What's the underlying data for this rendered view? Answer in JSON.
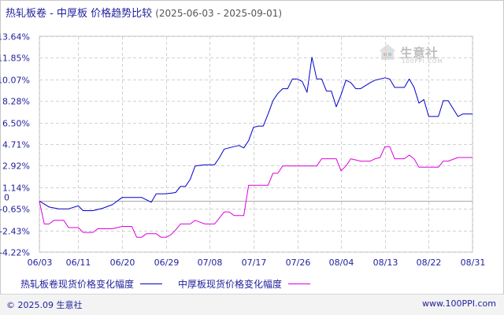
{
  "title": {
    "main": "热轧板卷 - 中厚板 价格趋势比较",
    "range": "(2025-06-03 - 2025-09-01)"
  },
  "legend": [
    {
      "label": "热轧板卷现货价格变化幅度",
      "color": "#0000cc"
    },
    {
      "label": "中厚板现货价格变化幅度",
      "color": "#dd00dd"
    }
  ],
  "footer": {
    "copyright": "© 2025.09 生意社",
    "site": "www.100PPI.com"
  },
  "watermark": {
    "logo_text": "生意社",
    "sub_text": "100PPI.COM",
    "icon": "house-logo-icon"
  },
  "colors": {
    "series1": "#0000cc",
    "series2": "#dd00dd",
    "grid": "#c8c8c8",
    "axis": "#1f1f9c"
  },
  "chart_data": {
    "type": "line",
    "title": "热轧板卷 - 中厚板 价格趋势比较",
    "subtitle": "(2025-06-03 - 2025-09-01)",
    "xlabel": "",
    "ylabel": "",
    "x_tick_labels": [
      "06/03",
      "06/11",
      "06/20",
      "06/29",
      "07/08",
      "07/17",
      "07/26",
      "08/04",
      "08/13",
      "08/22",
      "08/31"
    ],
    "x_tick_dates": [
      "2025-06-03",
      "2025-06-11",
      "2025-06-20",
      "2025-06-29",
      "2025-07-08",
      "2025-07-17",
      "2025-07-26",
      "2025-08-04",
      "2025-08-13",
      "2025-08-22",
      "2025-08-31"
    ],
    "y_tick_labels": [
      "13.64%",
      "11.85%",
      "10.07%",
      "8.28%",
      "6.50%",
      "4.71%",
      "2.92%",
      "1.14%",
      "-0.65%",
      "-2.43%",
      "-4.22%"
    ],
    "y_ticks": [
      13.64,
      11.85,
      10.07,
      8.28,
      6.5,
      4.71,
      2.92,
      1.14,
      -0.65,
      -2.43,
      -4.22
    ],
    "zero_label": "0",
    "ylim": [
      -4.22,
      13.64
    ],
    "xlim": [
      "2025-06-03",
      "2025-08-31"
    ],
    "grid": true,
    "legend_position": "bottom",
    "series": [
      {
        "name": "热轧板卷现货价格变化幅度",
        "color": "#0000cc",
        "points": [
          [
            "2025-06-03",
            0.0
          ],
          [
            "2025-06-05",
            -0.5
          ],
          [
            "2025-06-07",
            -0.65
          ],
          [
            "2025-06-09",
            -0.65
          ],
          [
            "2025-06-11",
            -0.4
          ],
          [
            "2025-06-12",
            -0.8
          ],
          [
            "2025-06-14",
            -0.8
          ],
          [
            "2025-06-16",
            -0.6
          ],
          [
            "2025-06-18",
            -0.3
          ],
          [
            "2025-06-20",
            0.3
          ],
          [
            "2025-06-22",
            0.3
          ],
          [
            "2025-06-24",
            0.3
          ],
          [
            "2025-06-26",
            -0.1
          ],
          [
            "2025-06-27",
            0.6
          ],
          [
            "2025-06-29",
            0.6
          ],
          [
            "2025-07-01",
            0.7
          ],
          [
            "2025-07-02",
            1.2
          ],
          [
            "2025-07-03",
            1.2
          ],
          [
            "2025-07-04",
            1.8
          ],
          [
            "2025-07-05",
            2.9
          ],
          [
            "2025-07-07",
            3.0
          ],
          [
            "2025-07-08",
            3.0
          ],
          [
            "2025-07-09",
            3.0
          ],
          [
            "2025-07-10",
            3.6
          ],
          [
            "2025-07-11",
            4.3
          ],
          [
            "2025-07-13",
            4.5
          ],
          [
            "2025-07-14",
            4.6
          ],
          [
            "2025-07-15",
            4.4
          ],
          [
            "2025-07-16",
            5.0
          ],
          [
            "2025-07-17",
            6.1
          ],
          [
            "2025-07-18",
            6.2
          ],
          [
            "2025-07-19",
            6.2
          ],
          [
            "2025-07-20",
            7.2
          ],
          [
            "2025-07-21",
            8.3
          ],
          [
            "2025-07-22",
            8.9
          ],
          [
            "2025-07-23",
            9.3
          ],
          [
            "2025-07-24",
            9.3
          ],
          [
            "2025-07-25",
            10.1
          ],
          [
            "2025-07-26",
            10.1
          ],
          [
            "2025-07-27",
            9.9
          ],
          [
            "2025-07-28",
            9.0
          ],
          [
            "2025-07-29",
            11.9
          ],
          [
            "2025-07-30",
            10.1
          ],
          [
            "2025-07-31",
            10.1
          ],
          [
            "2025-08-01",
            9.1
          ],
          [
            "2025-08-02",
            9.1
          ],
          [
            "2025-08-03",
            7.8
          ],
          [
            "2025-08-04",
            8.8
          ],
          [
            "2025-08-05",
            10.0
          ],
          [
            "2025-08-06",
            9.8
          ],
          [
            "2025-08-07",
            9.3
          ],
          [
            "2025-08-08",
            9.3
          ],
          [
            "2025-08-10",
            9.8
          ],
          [
            "2025-08-11",
            10.0
          ],
          [
            "2025-08-12",
            10.1
          ],
          [
            "2025-08-13",
            10.2
          ],
          [
            "2025-08-14",
            10.1
          ],
          [
            "2025-08-15",
            9.4
          ],
          [
            "2025-08-16",
            9.4
          ],
          [
            "2025-08-17",
            9.4
          ],
          [
            "2025-08-18",
            10.1
          ],
          [
            "2025-08-19",
            9.4
          ],
          [
            "2025-08-20",
            8.1
          ],
          [
            "2025-08-21",
            8.4
          ],
          [
            "2025-08-22",
            7.0
          ],
          [
            "2025-08-24",
            7.0
          ],
          [
            "2025-08-25",
            8.3
          ],
          [
            "2025-08-26",
            8.3
          ],
          [
            "2025-08-28",
            7.0
          ],
          [
            "2025-08-29",
            7.2
          ],
          [
            "2025-08-31",
            7.2
          ]
        ]
      },
      {
        "name": "中厚板现货价格变化幅度",
        "color": "#dd00dd",
        "points": [
          [
            "2025-06-03",
            0.0
          ],
          [
            "2025-06-04",
            -1.9
          ],
          [
            "2025-06-05",
            -1.9
          ],
          [
            "2025-06-06",
            -1.6
          ],
          [
            "2025-06-07",
            -1.6
          ],
          [
            "2025-06-08",
            -1.6
          ],
          [
            "2025-06-09",
            -2.2
          ],
          [
            "2025-06-11",
            -2.2
          ],
          [
            "2025-06-12",
            -2.6
          ],
          [
            "2025-06-14",
            -2.6
          ],
          [
            "2025-06-15",
            -2.3
          ],
          [
            "2025-06-18",
            -2.3
          ],
          [
            "2025-06-20",
            -2.1
          ],
          [
            "2025-06-22",
            -2.1
          ],
          [
            "2025-06-23",
            -3.0
          ],
          [
            "2025-06-24",
            -3.0
          ],
          [
            "2025-06-25",
            -2.7
          ],
          [
            "2025-06-27",
            -2.7
          ],
          [
            "2025-06-28",
            -3.0
          ],
          [
            "2025-06-29",
            -3.0
          ],
          [
            "2025-06-30",
            -2.8
          ],
          [
            "2025-07-01",
            -2.4
          ],
          [
            "2025-07-02",
            -1.9
          ],
          [
            "2025-07-04",
            -1.9
          ],
          [
            "2025-07-05",
            -1.6
          ],
          [
            "2025-07-07",
            -1.9
          ],
          [
            "2025-07-09",
            -1.9
          ],
          [
            "2025-07-11",
            -0.9
          ],
          [
            "2025-07-12",
            -0.9
          ],
          [
            "2025-07-13",
            -1.2
          ],
          [
            "2025-07-14",
            -1.2
          ],
          [
            "2025-07-15",
            -1.2
          ],
          [
            "2025-07-16",
            1.3
          ],
          [
            "2025-07-17",
            1.3
          ],
          [
            "2025-07-20",
            1.3
          ],
          [
            "2025-07-21",
            2.3
          ],
          [
            "2025-07-22",
            2.3
          ],
          [
            "2025-07-23",
            2.9
          ],
          [
            "2025-07-24",
            2.9
          ],
          [
            "2025-07-30",
            2.9
          ],
          [
            "2025-07-31",
            3.5
          ],
          [
            "2025-08-01",
            3.5
          ],
          [
            "2025-08-03",
            3.5
          ],
          [
            "2025-08-04",
            2.5
          ],
          [
            "2025-08-05",
            2.9
          ],
          [
            "2025-08-06",
            3.5
          ],
          [
            "2025-08-08",
            3.3
          ],
          [
            "2025-08-10",
            3.3
          ],
          [
            "2025-08-11",
            3.5
          ],
          [
            "2025-08-12",
            3.6
          ],
          [
            "2025-08-13",
            4.5
          ],
          [
            "2025-08-14",
            4.5
          ],
          [
            "2025-08-15",
            3.5
          ],
          [
            "2025-08-17",
            3.5
          ],
          [
            "2025-08-18",
            3.8
          ],
          [
            "2025-08-19",
            3.5
          ],
          [
            "2025-08-20",
            2.8
          ],
          [
            "2025-08-22",
            2.8
          ],
          [
            "2025-08-24",
            2.8
          ],
          [
            "2025-08-25",
            3.3
          ],
          [
            "2025-08-26",
            3.3
          ],
          [
            "2025-08-28",
            3.6
          ],
          [
            "2025-08-31",
            3.6
          ]
        ]
      }
    ]
  }
}
